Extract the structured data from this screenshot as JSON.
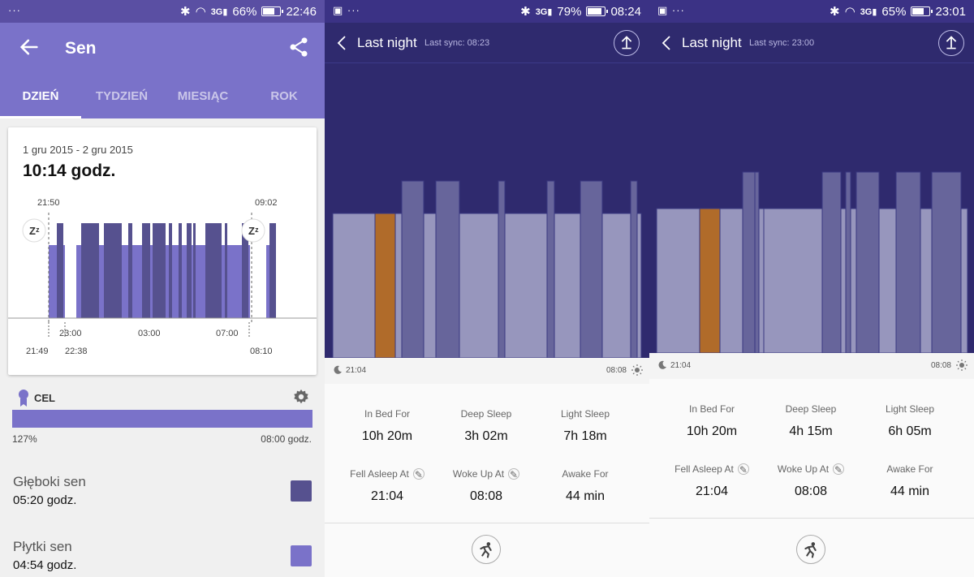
{
  "colors": {
    "mi_header": "#7a72c9",
    "mi_status": "#5a4fa3",
    "deep_sleep": "#56518f",
    "light_sleep": "#7a72c9",
    "fitbit_bg": "#2f2a6e",
    "fitbit_light": "#9796bd",
    "fitbit_deep": "#67659b",
    "fitbit_awake": "#b06b2a"
  },
  "panel1": {
    "status": {
      "left": "··· ",
      "battery": "66%",
      "battery_fraction": 0.66,
      "time": "22:46"
    },
    "title": "Sen",
    "tabs": [
      "DZIEŃ",
      "TYDZIEŃ",
      "MIESIĄC",
      "ROK"
    ],
    "active_tab": 0,
    "date_range": "1 gru 2015 - 2 gru 2015",
    "total": "10:14 godz.",
    "chart": {
      "top_left_time": "21:50",
      "top_right_time": "09:02",
      "axis_ticks": [
        "23:00",
        "03:00",
        "07:00"
      ],
      "bottom_left_1": "21:49",
      "bottom_left_2": "22:38",
      "bottom_right": "08:10"
    },
    "goal_label": "CEL",
    "goal_percent": "127%",
    "goal_target": "08:00 godz.",
    "goal_progress": 1.0,
    "deep_label": "Głęboki sen",
    "deep_value": "05:20 godz.",
    "light_label": "Płytki sen",
    "light_value": "04:54 godz."
  },
  "panel2": {
    "status": {
      "left": "",
      "battery": "79%",
      "battery_fraction": 0.79,
      "time": "08:24"
    },
    "title": "Last night",
    "sync": "Last sync: 08:23",
    "start_time": "21:04",
    "end_time": "08:08",
    "stats": [
      {
        "label": "In Bed For",
        "value": "10h 20m",
        "editable": false
      },
      {
        "label": "Deep Sleep",
        "value": "3h 02m",
        "editable": false
      },
      {
        "label": "Light Sleep",
        "value": "7h 18m",
        "editable": false
      },
      {
        "label": "Fell Asleep At",
        "value": "21:04",
        "editable": true
      },
      {
        "label": "Woke Up At",
        "value": "08:08",
        "editable": true
      },
      {
        "label": "Awake For",
        "value": "44 min",
        "editable": false
      }
    ]
  },
  "panel3": {
    "status": {
      "left": "",
      "battery": "65%",
      "battery_fraction": 0.65,
      "time": "23:01"
    },
    "title": "Last night",
    "sync": "Last sync: 23:00",
    "start_time": "21:04",
    "end_time": "08:08",
    "stats": [
      {
        "label": "In Bed For",
        "value": "10h 20m",
        "editable": false
      },
      {
        "label": "Deep Sleep",
        "value": "4h 15m",
        "editable": false
      },
      {
        "label": "Light Sleep",
        "value": "6h 05m",
        "editable": false
      },
      {
        "label": "Fell Asleep At",
        "value": "21:04",
        "editable": true
      },
      {
        "label": "Woke Up At",
        "value": "08:08",
        "editable": true
      },
      {
        "label": "Awake For",
        "value": "44 min",
        "editable": false
      }
    ]
  }
}
